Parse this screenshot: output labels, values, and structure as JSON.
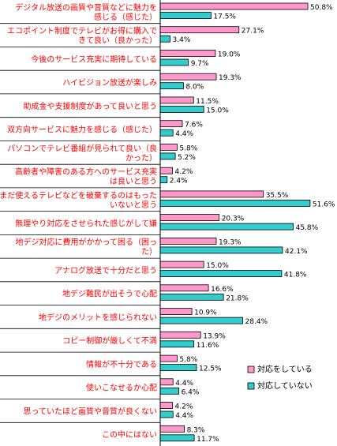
{
  "chart_data": {
    "type": "bar",
    "orientation": "horizontal",
    "xlim": [
      0,
      52
    ],
    "grid": false,
    "legend_position": "bottom-right",
    "categories": [
      "デジタル放送の画質や音質などに魅力を感じる（感じた）",
      "エコポイント制度でテレビがお得に購入できて良い（良かった）",
      "今後のサービス充実に期待している",
      "ハイビジョン放送が楽しみ",
      "助成金や支援制度があって良いと思う",
      "双方向サービスに魅力を感じる（感じた）",
      "パソコンでテレビ番組が見られて良い（良かった）",
      "高齢者や障害のある方へのサービス充実は良いと思う",
      "まだ使えるテレビなどを破棄するのはもったいないと思う",
      "無理やり対応をさせられた感じがして嫌",
      "地デジ対応に費用がかかって困る（困った）",
      "アナログ放送で十分だと思う",
      "地デジ難民が出そうで心配",
      "地デジのメリットを感じられない",
      "コピー制御が厳しくて不満",
      "情報が不十分である",
      "使いこなせるか心配",
      "思っていたほど画質や音質が良くない",
      "この中にはない"
    ],
    "category_lines": [
      [
        "デジタル放送の画質や音質などに魅力を",
        "感じる（感じた）"
      ],
      [
        "エコポイント制度でテレビがお得に購入で",
        "きて良い（良かった）"
      ],
      [
        "今後のサービス充実に期待している"
      ],
      [
        "ハイビジョン放送が楽しみ"
      ],
      [
        "助成金や支援制度があって良いと思う"
      ],
      [
        "双方向サービスに魅力を感じる（感じた）"
      ],
      [
        "パソコンでテレビ番組が見られて良い（良",
        "かった）"
      ],
      [
        "高齢者や障害のある方へのサービス充実",
        "は良いと思う"
      ],
      [
        "まだ使えるテレビなどを破棄するのはもった",
        "いないと思う"
      ],
      [
        "無理やり対応をさせられた感じがして嫌"
      ],
      [
        "地デジ対応に費用がかかって困る（困っ",
        "た）"
      ],
      [
        "アナログ放送で十分だと思う"
      ],
      [
        "地デジ難民が出そうで心配"
      ],
      [
        "地デジのメリットを感じられない"
      ],
      [
        "コピー制御が厳しくて不満"
      ],
      [
        "情報が不十分である"
      ],
      [
        "使いこなせるか心配"
      ],
      [
        "思っていたほど画質や音質が良くない"
      ],
      [
        "この中にはない"
      ]
    ],
    "series": [
      {
        "name": "対応をしている",
        "color": "#ff99cc",
        "values": [
          50.8,
          27.1,
          19.0,
          19.3,
          11.5,
          7.6,
          5.8,
          4.2,
          35.5,
          20.3,
          19.3,
          15.0,
          16.6,
          10.9,
          13.9,
          5.8,
          4.4,
          4.2,
          8.3
        ],
        "labels": [
          "50.8%",
          "27.1%",
          "19.0%",
          "19.3%",
          "11.5%",
          "7.6%",
          "5.8%",
          "4.2%",
          "35.5%",
          "20.3%",
          "19.3%",
          "15.0%",
          "16.6%",
          "10.9%",
          "13.9%",
          "5.8%",
          "4.4%",
          "4.2%",
          "8.3%"
        ]
      },
      {
        "name": "対応していない",
        "color": "#33cccc",
        "values": [
          17.5,
          3.4,
          9.7,
          8.0,
          15.0,
          4.4,
          5.2,
          2.4,
          51.6,
          45.8,
          42.1,
          41.8,
          21.8,
          28.4,
          11.6,
          12.5,
          6.4,
          4.4,
          11.7
        ],
        "labels": [
          "17.5%",
          "3.4%",
          "9.7%",
          "8.0%",
          "15.0%",
          "4.4%",
          "5.2%",
          "2.4%",
          "51.6%",
          "45.8%",
          "42.1%",
          "41.8%",
          "21.8%",
          "28.4%",
          "11.6%",
          "12.5%",
          "6.4%",
          "4.4%",
          "11.7%"
        ]
      }
    ]
  },
  "colors": {
    "label_text": "#ff0000",
    "separator": "#000000",
    "axis": "#000000"
  }
}
